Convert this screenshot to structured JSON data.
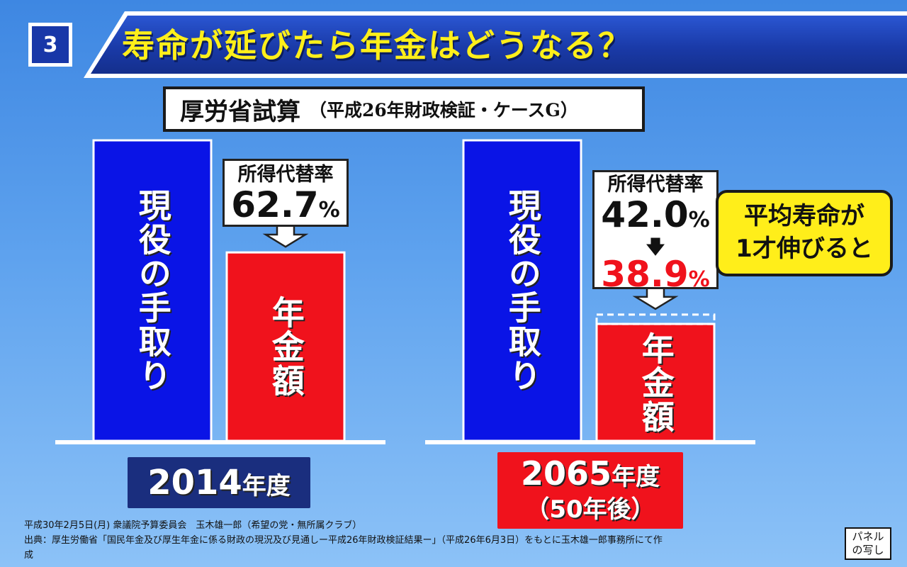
{
  "header": {
    "panel_number": "3",
    "title": "寿命が延びたら年金はどうなる？"
  },
  "subtitle": {
    "main": "厚労省試算",
    "sub": "（平成26年財政検証・ケースG）"
  },
  "chart_data": {
    "type": "bar",
    "title": "",
    "groups": [
      {
        "year_label": "2014",
        "year_unit": "年度",
        "year_sub": "",
        "takehome_label": "現役の手取り",
        "pension_label": "年金額",
        "replacement_rate_title": "所得代替率",
        "replacement_rate": 62.7,
        "replacement_rate_text": "62.7",
        "reduced_rate": null,
        "reduced_rate_text": ""
      },
      {
        "year_label": "2065",
        "year_unit": "年度",
        "year_sub": "（50年後）",
        "takehome_label": "現役の手取り",
        "pension_label": "年金額",
        "replacement_rate_title": "所得代替率",
        "replacement_rate": 42.0,
        "replacement_rate_text": "42.0",
        "reduced_rate": 38.9,
        "reduced_rate_text": "38.9"
      }
    ],
    "takehome_value": 100,
    "unit_symbol": "%",
    "colors": {
      "takehome": "#0a14e6",
      "pension": "#f0121c",
      "reduced_rate_text": "#f0121c"
    },
    "arrow_symbol": "🡇"
  },
  "callout": {
    "line1": "平均寿命が",
    "line2": "1才伸びると"
  },
  "footer": {
    "line1": "平成30年2月5日(月) 衆議院予算委員会　玉木雄一郎（希望の党・無所属クラブ）",
    "line2": "出典：厚生労働省「国民年金及び厚生年金に係る財政の現況及び見通しー平成26年財政検証結果ー」（平成26年6月3日）をもとに玉木雄一郎事務所にて作",
    "line3": "成",
    "badge_line1": "パネル",
    "badge_line2": "の写し"
  }
}
